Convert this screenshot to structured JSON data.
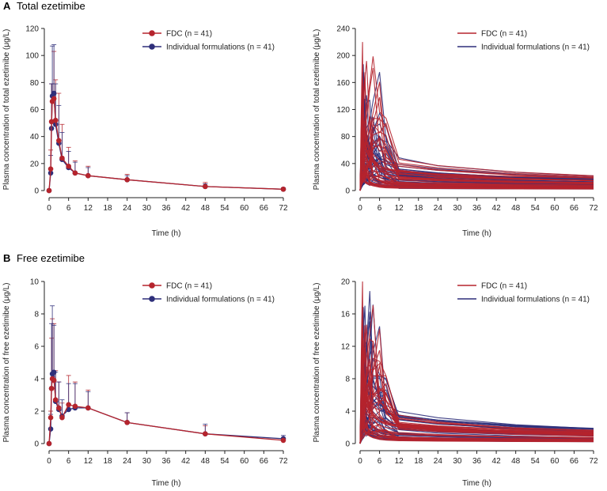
{
  "figure": {
    "panels": [
      {
        "letter": "A",
        "title": "Total ezetimibe"
      },
      {
        "letter": "B",
        "title": "Free ezetimibe"
      }
    ]
  },
  "colors": {
    "fdc": "#b5242d",
    "individual": "#2e2f7a",
    "axis": "#222222"
  },
  "chart_data": [
    {
      "id": "A-mean",
      "type": "line",
      "panel": "A",
      "xlabel": "Time (h)",
      "ylabel": "Plasma concentration of total ezetimibe (μg/L)",
      "xlim": [
        0,
        72
      ],
      "ylim": [
        0,
        120
      ],
      "xticks": [
        0,
        6,
        12,
        18,
        24,
        30,
        36,
        42,
        48,
        54,
        60,
        66,
        72
      ],
      "yticks": [
        0,
        20,
        40,
        60,
        80,
        100,
        120
      ],
      "legend": "top-right",
      "series": [
        {
          "name": "FDC (n = 41)",
          "color": "#b5242d",
          "x": [
            0,
            0.5,
            0.75,
            1,
            1.5,
            2,
            3,
            4,
            6,
            8,
            12,
            24,
            48,
            72
          ],
          "y": [
            0,
            16,
            51,
            66,
            68,
            52,
            37,
            24,
            18,
            13,
            11,
            8,
            3,
            1
          ],
          "error": [
            0,
            14,
            28,
            13,
            35,
            30,
            35,
            25,
            14,
            9,
            7,
            4,
            3,
            1
          ]
        },
        {
          "name": "Individual formulations (n = 41)",
          "color": "#2e2f7a",
          "x": [
            0,
            0.5,
            0.75,
            1,
            1.5,
            2,
            3,
            4,
            6,
            8,
            12,
            24,
            48,
            72
          ],
          "y": [
            0,
            13,
            46,
            70,
            72,
            49,
            35,
            23,
            17,
            13,
            11,
            8,
            3,
            1
          ],
          "error": [
            0,
            13,
            33,
            37,
            36,
            30,
            28,
            20,
            12,
            8,
            6,
            3,
            2,
            1
          ]
        }
      ]
    },
    {
      "id": "A-indiv",
      "type": "line",
      "panel": "A",
      "xlabel": "Time (h)",
      "ylabel": "Plasma concentration of total ezetimibe (μg/L)",
      "xlim": [
        0,
        72
      ],
      "ylim": [
        0,
        240
      ],
      "xticks": [
        0,
        6,
        12,
        18,
        24,
        30,
        36,
        42,
        48,
        54,
        60,
        66,
        72
      ],
      "yticks": [
        0,
        40,
        80,
        120,
        160,
        200,
        240
      ],
      "legend": "top-right",
      "series": [
        {
          "name": "FDC (n = 41)",
          "color": "#b5242d"
        },
        {
          "name": "Individual formulations (n = 41)",
          "color": "#2e2f7a"
        }
      ]
    },
    {
      "id": "B-mean",
      "type": "line",
      "panel": "B",
      "xlabel": "Time (h)",
      "ylabel": "Plasma concentration of free ezetimibe (μg/L)",
      "xlim": [
        0,
        72
      ],
      "ylim": [
        0,
        10
      ],
      "xticks": [
        0,
        6,
        12,
        18,
        24,
        30,
        36,
        42,
        48,
        54,
        60,
        66,
        72
      ],
      "yticks": [
        0,
        2,
        4,
        6,
        8,
        10
      ],
      "legend": "top-right",
      "series": [
        {
          "name": "FDC (n = 41)",
          "color": "#b5242d",
          "x": [
            0,
            0.5,
            0.75,
            1,
            1.5,
            2,
            3,
            4,
            6,
            8,
            12,
            24,
            48,
            72
          ],
          "y": [
            0,
            1.6,
            3.4,
            4.0,
            3.9,
            2.7,
            2.2,
            1.6,
            2.4,
            2.3,
            2.2,
            1.3,
            0.6,
            0.2
          ],
          "error": [
            0,
            0.4,
            3.1,
            3.7,
            3.5,
            1.8,
            1.6,
            0.9,
            1.8,
            1.5,
            1.1,
            0.6,
            0.5,
            0.1
          ]
        },
        {
          "name": "Individual formulations (n = 41)",
          "color": "#2e2f7a",
          "x": [
            0,
            0.5,
            0.75,
            1,
            1.5,
            2,
            3,
            4,
            6,
            8,
            12,
            24,
            48,
            72
          ],
          "y": [
            0,
            0.9,
            3.4,
            4.3,
            4.4,
            2.6,
            2.1,
            1.7,
            2.1,
            2.2,
            2.2,
            1.3,
            0.6,
            0.3
          ],
          "error": [
            0,
            0.9,
            4.0,
            4.2,
            2.9,
            1.8,
            1.7,
            1.0,
            1.6,
            1.5,
            1.0,
            0.6,
            0.6,
            0.2
          ]
        }
      ]
    },
    {
      "id": "B-indiv",
      "type": "line",
      "panel": "B",
      "xlabel": "Time (h)",
      "ylabel": "Plasma concentration of free ezetimibe (μg/L)",
      "xlim": [
        0,
        72
      ],
      "ylim": [
        0,
        20
      ],
      "xticks": [
        0,
        6,
        12,
        18,
        24,
        30,
        36,
        42,
        48,
        54,
        60,
        66,
        72
      ],
      "yticks": [
        0,
        4,
        8,
        12,
        16,
        20
      ],
      "legend": "top-right",
      "series": [
        {
          "name": "FDC (n = 41)",
          "color": "#b5242d"
        },
        {
          "name": "Individual formulations (n = 41)",
          "color": "#2e2f7a"
        }
      ]
    }
  ]
}
